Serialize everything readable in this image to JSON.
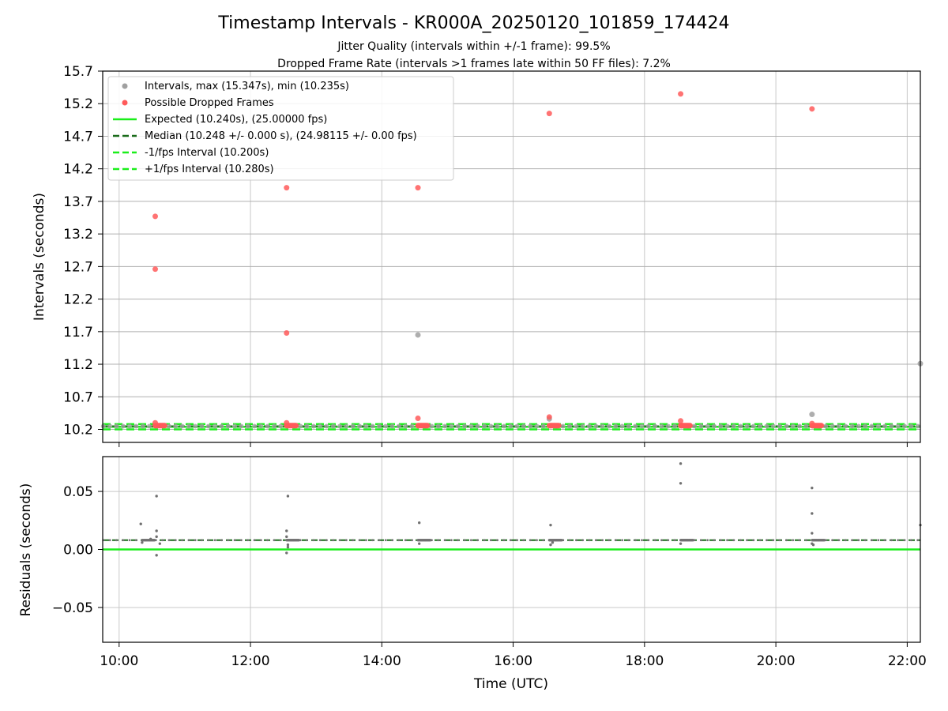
{
  "chart_data": {
    "title": "Timestamp Intervals - KR000A_20250120_101859_174424",
    "subtitle_1": "Jitter Quality (intervals within +/-1 frame): 99.5%",
    "subtitle_2": "Dropped Frame Rate (intervals >1 frames late within 50 FF files): 7.2%",
    "xlabel": "Time (UTC)",
    "x_unit": "hours_utc",
    "xlim": [
      9.75,
      22.2
    ],
    "x_ticks": [
      {
        "value": 10,
        "label": "10:00"
      },
      {
        "value": 12,
        "label": "12:00"
      },
      {
        "value": 14,
        "label": "14:00"
      },
      {
        "value": 16,
        "label": "16:00"
      },
      {
        "value": 18,
        "label": "18:00"
      },
      {
        "value": 20,
        "label": "20:00"
      },
      {
        "value": 22,
        "label": "22:00"
      }
    ],
    "colors": {
      "intervals": "#a0a0a0",
      "dropped": "#ff5a5a",
      "expected": "#1aee1a",
      "median": "#1a6b1a",
      "bound": "#1aee1a",
      "residual": "#707070",
      "grid": "#c8c8c8"
    },
    "top": {
      "type": "scatter",
      "ylabel": "Intervals (seconds)",
      "ylim": [
        10.0,
        15.7
      ],
      "y_ticks": [
        "10.2",
        "10.7",
        "11.2",
        "11.7",
        "12.2",
        "12.7",
        "13.2",
        "13.7",
        "14.2",
        "14.7",
        "15.2",
        "15.7"
      ],
      "legend_position": "upper-left",
      "legend": {
        "intervals": "Intervals, max (15.347s), min (10.235s)",
        "dropped": "Possible Dropped Frames",
        "expected": "Expected (10.240s), (25.00000 fps)",
        "median": "Median (10.248 +/- 0.000 s), (24.98115 +/- 0.00 fps)",
        "minus": "-1/fps Interval (10.200s)",
        "plus": "+1/fps Interval (10.280s)"
      },
      "lines": {
        "expected": 10.24,
        "median": 10.248,
        "minus": 10.2,
        "plus": 10.28
      },
      "baseline_value": 10.248,
      "baseline_step_hours": 0.1,
      "intervals_extra": [
        {
          "x": 14.55,
          "y": 11.65
        },
        {
          "x": 20.55,
          "y": 10.43
        },
        {
          "x": 16.55,
          "y": 10.36
        },
        {
          "x": 22.2,
          "y": 11.21
        }
      ],
      "dropped": [
        {
          "x": 10.55,
          "y": 13.47
        },
        {
          "x": 10.55,
          "y": 12.66
        },
        {
          "x": 10.55,
          "y": 10.3
        },
        {
          "x": 12.55,
          "y": 13.91
        },
        {
          "x": 12.55,
          "y": 11.68
        },
        {
          "x": 12.55,
          "y": 10.3
        },
        {
          "x": 14.55,
          "y": 13.91
        },
        {
          "x": 14.55,
          "y": 10.37
        },
        {
          "x": 16.55,
          "y": 15.05
        },
        {
          "x": 16.55,
          "y": 10.39
        },
        {
          "x": 18.55,
          "y": 15.35
        },
        {
          "x": 18.55,
          "y": 10.33
        },
        {
          "x": 20.55,
          "y": 15.12
        },
        {
          "x": 20.55,
          "y": 10.29
        }
      ],
      "dropped_cluster_value": 10.258,
      "dropped_cluster_starts": [
        10.55,
        12.55,
        14.55,
        16.55,
        18.55,
        20.55
      ],
      "dropped_cluster_count": 12,
      "dropped_cluster_step_hours": 0.013
    },
    "bottom": {
      "type": "scatter",
      "ylabel": "Residuals (seconds)",
      "ylim": [
        -0.08,
        0.08
      ],
      "y_ticks": [
        {
          "value": -0.05,
          "label": "−0.05"
        },
        {
          "value": 0.0,
          "label": "0.00"
        },
        {
          "value": 0.05,
          "label": "0.05"
        }
      ],
      "expected": 0.0,
      "median": 0.008,
      "residuals": [
        {
          "x": 10.33,
          "y": 0.022
        },
        {
          "x": 10.57,
          "y": 0.046
        },
        {
          "x": 10.57,
          "y": 0.016
        },
        {
          "x": 10.57,
          "y": -0.005
        },
        {
          "x": 10.57,
          "y": 0.011
        },
        {
          "x": 10.35,
          "y": 0.006
        },
        {
          "x": 10.62,
          "y": 0.005
        },
        {
          "x": 10.48,
          "y": 0.009
        },
        {
          "x": 12.57,
          "y": 0.046
        },
        {
          "x": 12.55,
          "y": 0.016
        },
        {
          "x": 12.55,
          "y": 0.011
        },
        {
          "x": 12.55,
          "y": -0.003
        },
        {
          "x": 12.57,
          "y": 0.004
        },
        {
          "x": 12.57,
          "y": 0.002
        },
        {
          "x": 14.57,
          "y": 0.023
        },
        {
          "x": 14.57,
          "y": 0.005
        },
        {
          "x": 16.57,
          "y": 0.021
        },
        {
          "x": 16.57,
          "y": 0.004
        },
        {
          "x": 16.6,
          "y": 0.006
        },
        {
          "x": 18.55,
          "y": 0.074
        },
        {
          "x": 18.55,
          "y": 0.057
        },
        {
          "x": 18.55,
          "y": 0.005
        },
        {
          "x": 20.55,
          "y": 0.053
        },
        {
          "x": 20.55,
          "y": 0.031
        },
        {
          "x": 20.55,
          "y": 0.014
        },
        {
          "x": 20.55,
          "y": 0.005
        },
        {
          "x": 20.57,
          "y": 0.004
        },
        {
          "x": 22.2,
          "y": 0.021
        }
      ],
      "cluster_value": 0.008,
      "cluster_starts": [
        10.35,
        12.55,
        14.55,
        16.55,
        18.55,
        20.55
      ],
      "cluster_count": 20,
      "cluster_step_hours": 0.01
    }
  }
}
